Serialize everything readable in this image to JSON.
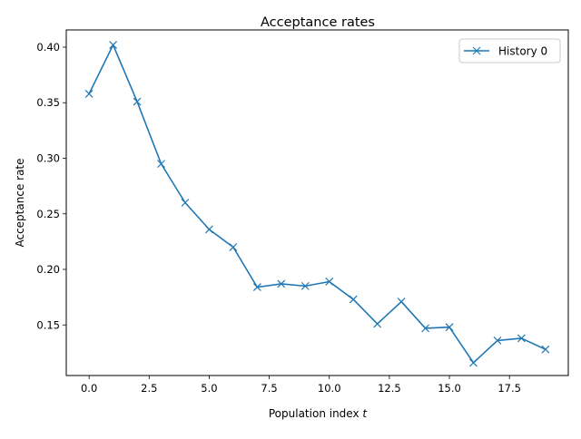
{
  "chart_data": {
    "type": "line",
    "title": "Acceptance rates",
    "xlabel": "Population index",
    "xlabel_var": "t",
    "ylabel": "Acceptance rate",
    "xlim": [
      -0.95,
      19.95
    ],
    "ylim": [
      0.1045,
      0.4155
    ],
    "x_ticks": [
      0.0,
      2.5,
      5.0,
      7.5,
      10.0,
      12.5,
      15.0,
      17.5
    ],
    "x_tick_labels": [
      "0.0",
      "2.5",
      "5.0",
      "7.5",
      "10.0",
      "12.5",
      "15.0",
      "17.5"
    ],
    "y_ticks": [
      0.15,
      0.2,
      0.25,
      0.3,
      0.35,
      0.4
    ],
    "y_tick_labels": [
      "0.15",
      "0.20",
      "0.25",
      "0.30",
      "0.35",
      "0.40"
    ],
    "grid": false,
    "legend_position": "top-right",
    "series": [
      {
        "name": "History 0",
        "color": "#1f77b4",
        "marker": "x",
        "x": [
          0,
          1,
          2,
          3,
          4,
          5,
          6,
          7,
          8,
          9,
          10,
          11,
          12,
          13,
          14,
          15,
          16,
          17,
          18,
          19
        ],
        "values": [
          0.358,
          0.402,
          0.351,
          0.295,
          0.26,
          0.236,
          0.22,
          0.184,
          0.187,
          0.185,
          0.189,
          0.173,
          0.151,
          0.171,
          0.147,
          0.148,
          0.116,
          0.136,
          0.138,
          0.128
        ]
      }
    ]
  }
}
